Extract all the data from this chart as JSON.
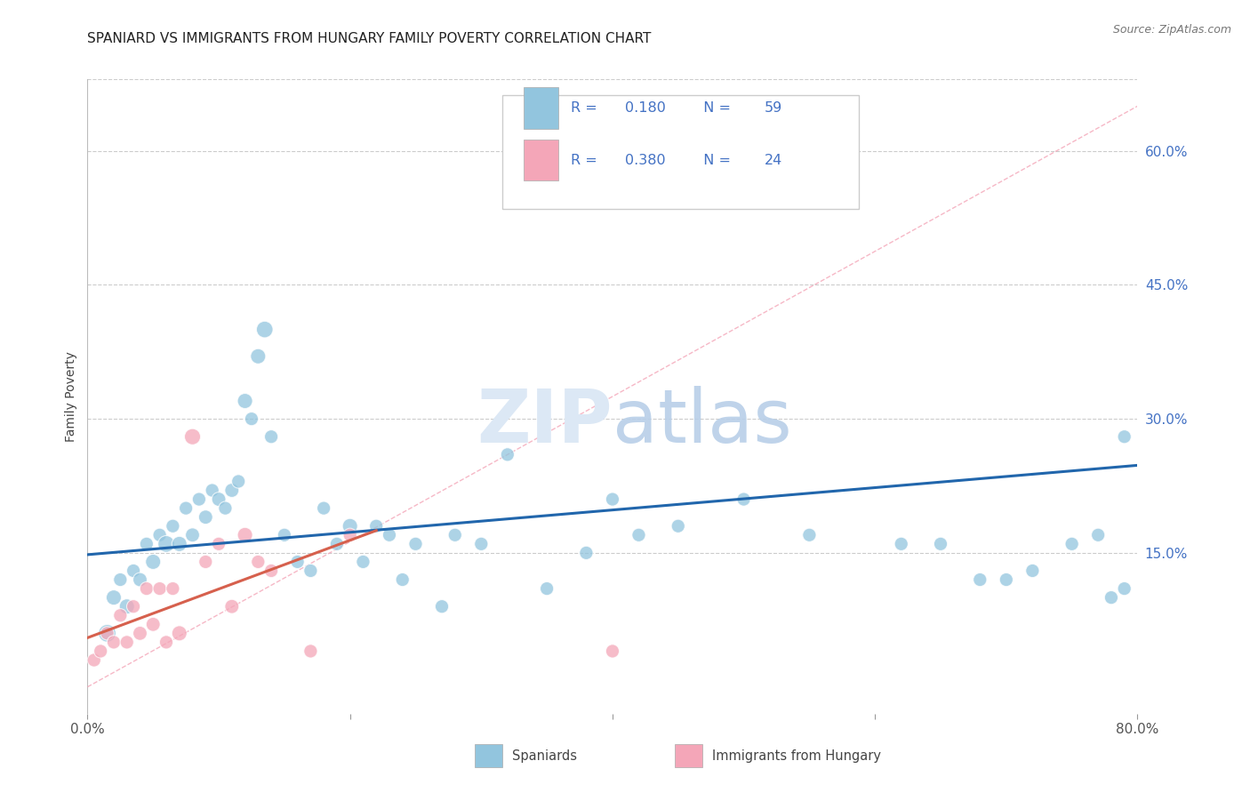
{
  "title": "SPANIARD VS IMMIGRANTS FROM HUNGARY FAMILY POVERTY CORRELATION CHART",
  "source": "Source: ZipAtlas.com",
  "ylabel": "Family Poverty",
  "right_ytick_labels": [
    "15.0%",
    "30.0%",
    "45.0%",
    "60.0%"
  ],
  "right_ytick_values": [
    0.15,
    0.3,
    0.45,
    0.6
  ],
  "xlim": [
    0.0,
    0.8
  ],
  "ylim": [
    -0.03,
    0.68
  ],
  "legend_label1": "Spaniards",
  "legend_label2": "Immigrants from Hungary",
  "blue_color": "#92c5de",
  "pink_color": "#f4a6b8",
  "blue_line_color": "#2166ac",
  "pink_line_color": "#d6604d",
  "legend_text_color": "#4472c4",
  "right_tick_color": "#4472c4",
  "blue_scatter_x": [
    0.015,
    0.02,
    0.025,
    0.03,
    0.035,
    0.04,
    0.045,
    0.05,
    0.055,
    0.06,
    0.065,
    0.07,
    0.075,
    0.08,
    0.085,
    0.09,
    0.095,
    0.1,
    0.105,
    0.11,
    0.115,
    0.12,
    0.125,
    0.13,
    0.135,
    0.14,
    0.15,
    0.16,
    0.17,
    0.18,
    0.19,
    0.2,
    0.21,
    0.22,
    0.23,
    0.24,
    0.25,
    0.27,
    0.28,
    0.3,
    0.32,
    0.35,
    0.38,
    0.4,
    0.42,
    0.45,
    0.5,
    0.55,
    0.58,
    0.62,
    0.65,
    0.68,
    0.7,
    0.72,
    0.75,
    0.77,
    0.78,
    0.79,
    0.79
  ],
  "blue_scatter_y": [
    0.06,
    0.1,
    0.12,
    0.09,
    0.13,
    0.12,
    0.16,
    0.14,
    0.17,
    0.16,
    0.18,
    0.16,
    0.2,
    0.17,
    0.21,
    0.19,
    0.22,
    0.21,
    0.2,
    0.22,
    0.23,
    0.32,
    0.3,
    0.37,
    0.4,
    0.28,
    0.17,
    0.14,
    0.13,
    0.2,
    0.16,
    0.18,
    0.14,
    0.18,
    0.17,
    0.12,
    0.16,
    0.09,
    0.17,
    0.16,
    0.26,
    0.11,
    0.15,
    0.21,
    0.17,
    0.18,
    0.21,
    0.17,
    0.58,
    0.16,
    0.16,
    0.12,
    0.12,
    0.13,
    0.16,
    0.17,
    0.1,
    0.11,
    0.28
  ],
  "blue_scatter_size": [
    200,
    150,
    120,
    150,
    120,
    130,
    120,
    150,
    120,
    180,
    120,
    150,
    120,
    130,
    120,
    130,
    120,
    130,
    120,
    130,
    120,
    150,
    120,
    150,
    180,
    120,
    120,
    120,
    120,
    120,
    120,
    150,
    120,
    120,
    120,
    120,
    120,
    120,
    120,
    120,
    120,
    120,
    120,
    120,
    120,
    120,
    120,
    120,
    120,
    120,
    120,
    120,
    120,
    120,
    120,
    120,
    120,
    120,
    120
  ],
  "pink_scatter_x": [
    0.005,
    0.01,
    0.015,
    0.02,
    0.025,
    0.03,
    0.035,
    0.04,
    0.045,
    0.05,
    0.055,
    0.06,
    0.065,
    0.07,
    0.08,
    0.09,
    0.1,
    0.11,
    0.12,
    0.13,
    0.14,
    0.17,
    0.2,
    0.4
  ],
  "pink_scatter_y": [
    0.03,
    0.04,
    0.06,
    0.05,
    0.08,
    0.05,
    0.09,
    0.06,
    0.11,
    0.07,
    0.11,
    0.05,
    0.11,
    0.06,
    0.28,
    0.14,
    0.16,
    0.09,
    0.17,
    0.14,
    0.13,
    0.04,
    0.17,
    0.04
  ],
  "pink_scatter_size": [
    120,
    120,
    120,
    120,
    120,
    120,
    120,
    130,
    120,
    130,
    120,
    120,
    120,
    150,
    170,
    120,
    120,
    130,
    150,
    120,
    120,
    120,
    120,
    120
  ],
  "blue_trendline_x": [
    0.0,
    0.8
  ],
  "blue_trendline_y": [
    0.148,
    0.248
  ],
  "pink_trendline_x": [
    0.0,
    0.22
  ],
  "pink_trendline_y": [
    0.055,
    0.175
  ],
  "diag_line_x": [
    0.0,
    0.8
  ],
  "diag_line_y": [
    0.0,
    0.65
  ],
  "grid_color": "#cccccc",
  "background_color": "#ffffff",
  "title_fontsize": 11,
  "axis_label_fontsize": 10,
  "tick_fontsize": 11
}
